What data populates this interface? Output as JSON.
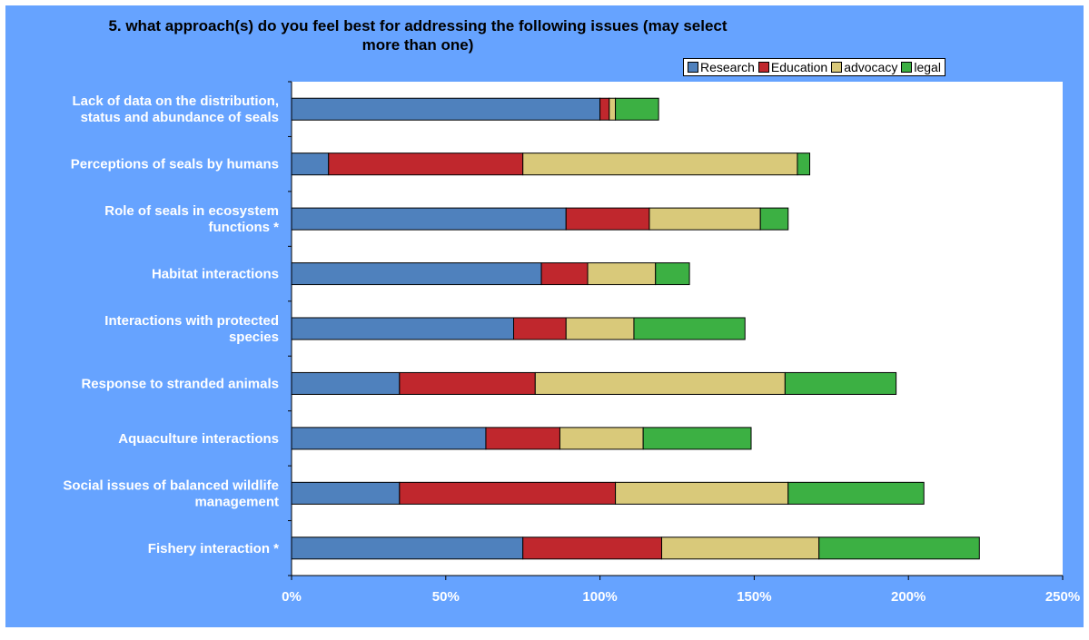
{
  "chart_data": {
    "type": "bar",
    "orientation": "horizontal",
    "stacked": true,
    "title": "5. what approach(s) do you feel best for addressing the following issues (may select more than one)",
    "title_lines": [
      "5. what approach(s) do you feel best for addressing the following issues (may select",
      "more than one)"
    ],
    "categories": [
      {
        "lines": [
          "Lack of data on the distribution,",
          "status and abundance of seals"
        ]
      },
      {
        "lines": [
          "Perceptions of seals by humans"
        ]
      },
      {
        "lines": [
          "Role of seals in ecosystem",
          "functions *"
        ]
      },
      {
        "lines": [
          "Habitat interactions"
        ]
      },
      {
        "lines": [
          "Interactions with protected",
          "species"
        ]
      },
      {
        "lines": [
          "Response to stranded animals"
        ]
      },
      {
        "lines": [
          "Aquaculture interactions"
        ]
      },
      {
        "lines": [
          "Social issues of balanced wildlife",
          "management"
        ]
      },
      {
        "lines": [
          "Fishery interaction *"
        ]
      }
    ],
    "series": [
      {
        "name": "Research",
        "color": "#4f81bd",
        "values": [
          100,
          12,
          89,
          81,
          72,
          35,
          63,
          35,
          75
        ]
      },
      {
        "name": "Education",
        "color": "#c0272d",
        "values": [
          3,
          63,
          27,
          15,
          17,
          44,
          24,
          70,
          45
        ]
      },
      {
        "name": "advocacy",
        "color": "#d9c97a",
        "values": [
          2,
          89,
          36,
          22,
          22,
          81,
          27,
          56,
          51
        ]
      },
      {
        "name": "legal",
        "color": "#3cb043",
        "values": [
          14,
          4,
          9,
          11,
          36,
          36,
          35,
          44,
          52
        ]
      }
    ],
    "xlim": [
      0,
      250
    ],
    "xticks": [
      0,
      50,
      100,
      150,
      200,
      250
    ],
    "xtick_labels": [
      "0%",
      "50%",
      "100%",
      "150%",
      "200%",
      "250%"
    ],
    "grid": false,
    "legend_position": "top-right"
  }
}
